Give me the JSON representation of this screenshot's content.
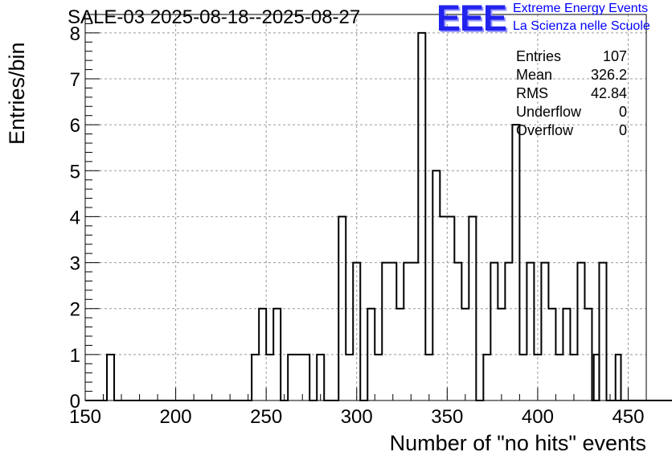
{
  "chart_data": {
    "type": "histogram",
    "title": "SALE-03 2025-08-18--2025-08-27",
    "xlabel": "Number of \"no hits\" events",
    "ylabel": "Entries/bin",
    "xlim": [
      150,
      460
    ],
    "ylim": [
      0,
      8.4
    ],
    "grid": true,
    "bin_width": 4,
    "bin_start": 150,
    "values": [
      0,
      0,
      0,
      1,
      0,
      0,
      0,
      0,
      0,
      0,
      0,
      0,
      0,
      0,
      0,
      0,
      0,
      0,
      0,
      0,
      0,
      0,
      0,
      1,
      2,
      1,
      2,
      0,
      1,
      1,
      1,
      0,
      1,
      0,
      0,
      4,
      1,
      3,
      0,
      2,
      1,
      3,
      3,
      2,
      3,
      3,
      8,
      1,
      5,
      4,
      4,
      3,
      2,
      4,
      0,
      1,
      3,
      2,
      3,
      6,
      1,
      3,
      1,
      3,
      2,
      1,
      2,
      1,
      3,
      2,
      0,
      3,
      0,
      0,
      0,
      0,
      0,
      0,
      0,
      0,
      0,
      0,
      0,
      0,
      0,
      0,
      0,
      0,
      0,
      0,
      0,
      0,
      0,
      0,
      0,
      0,
      0,
      0,
      0,
      0,
      0,
      0,
      0,
      0,
      0,
      0,
      0,
      0,
      0,
      0,
      0,
      0,
      0,
      0
    ],
    "extra_bins": [
      {
        "x": 431,
        "value": 1
      },
      {
        "x": 443,
        "value": 1
      }
    ],
    "xticks": [
      "150",
      "200",
      "250",
      "300",
      "350",
      "400",
      "450"
    ],
    "yticks": [
      "0",
      "1",
      "2",
      "3",
      "4",
      "5",
      "6",
      "7",
      "8"
    ],
    "stats": [
      {
        "key": "Entries",
        "value": "107"
      },
      {
        "key": "Mean",
        "value": "326.2"
      },
      {
        "key": "RMS",
        "value": "42.84"
      },
      {
        "key": "Underflow",
        "value": "0"
      },
      {
        "key": "Overflow",
        "value": "0"
      }
    ]
  },
  "logo": {
    "mark": "EEE",
    "line1": "Extreme Energy Events",
    "line2": "La Scienza nelle Scuole",
    "color": "#0000ff"
  }
}
